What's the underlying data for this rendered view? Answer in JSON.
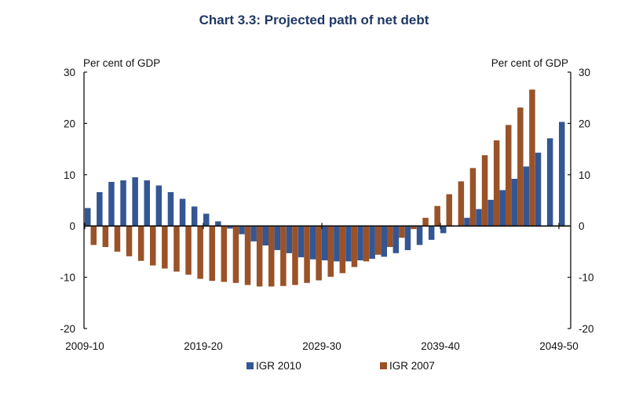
{
  "chart_data": {
    "type": "bar",
    "title": "Chart 3.3: Projected path of net debt",
    "ylabel_left": "Per cent of GDP",
    "ylabel_right": "Per cent of GDP",
    "ylim": [
      -20,
      30
    ],
    "yticks": [
      -20,
      -10,
      0,
      10,
      20,
      30
    ],
    "xtick_labels": [
      "2009-10",
      "2019-20",
      "2029-30",
      "2039-40",
      "2049-50"
    ],
    "grid": false,
    "legend_position": "bottom",
    "categories": [
      "2009-10",
      "2010-11",
      "2011-12",
      "2012-13",
      "2013-14",
      "2014-15",
      "2015-16",
      "2016-17",
      "2017-18",
      "2018-19",
      "2019-20",
      "2020-21",
      "2021-22",
      "2022-23",
      "2023-24",
      "2024-25",
      "2025-26",
      "2026-27",
      "2027-28",
      "2028-29",
      "2029-30",
      "2030-31",
      "2031-32",
      "2032-33",
      "2033-34",
      "2034-35",
      "2035-36",
      "2036-37",
      "2037-38",
      "2038-39",
      "2039-40",
      "2040-41",
      "2041-42",
      "2042-43",
      "2043-44",
      "2044-45",
      "2045-46",
      "2046-47",
      "2047-48",
      "2048-49",
      "2049-50"
    ],
    "series": [
      {
        "name": "IGR 2010",
        "color": "#345693",
        "values": [
          3.5,
          6.6,
          8.6,
          8.9,
          9.5,
          8.9,
          7.9,
          6.6,
          5.3,
          3.8,
          2.4,
          0.9,
          -0.5,
          -1.6,
          -3.0,
          -3.8,
          -4.7,
          -5.3,
          -6.1,
          -6.5,
          -6.7,
          -6.9,
          -6.9,
          -6.7,
          -6.4,
          -6.0,
          -5.3,
          -4.7,
          -3.7,
          -2.7,
          -1.4,
          0.0,
          1.6,
          3.3,
          5.1,
          7.0,
          9.2,
          11.6,
          14.3,
          17.1,
          20.3
        ]
      },
      {
        "name": "IGR 2007",
        "color": "#9a5228",
        "values": [
          -3.7,
          -4.1,
          -5.0,
          -5.9,
          -6.8,
          -7.7,
          -8.3,
          -8.9,
          -9.5,
          -10.3,
          -10.7,
          -10.9,
          -11.1,
          -11.5,
          -11.8,
          -11.8,
          -11.7,
          -11.5,
          -11.1,
          -10.6,
          -9.9,
          -9.2,
          -8.0,
          -6.9,
          -5.6,
          -4.1,
          -2.3,
          -0.6,
          1.6,
          3.9,
          6.2,
          8.7,
          11.3,
          13.8,
          16.7,
          19.7,
          23.1,
          26.6,
          null,
          null,
          null
        ]
      }
    ]
  },
  "legend": [
    {
      "label": "IGR 2010",
      "color": "#345693"
    },
    {
      "label": "IGR 2007",
      "color": "#9a5228"
    }
  ]
}
